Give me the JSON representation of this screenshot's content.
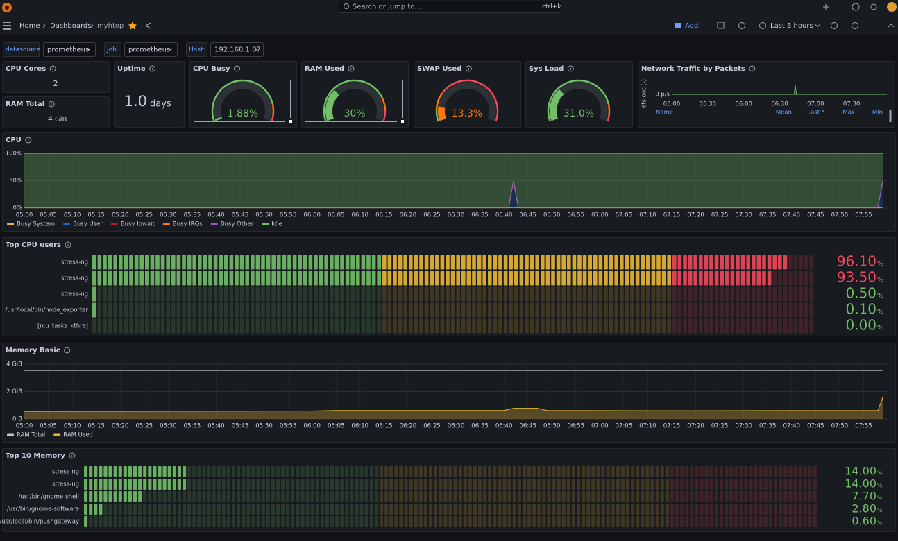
{
  "topbar": {
    "search": "Search or jump to...",
    "shortcut": "ctrl+k"
  },
  "breadcrumb": [
    "Home",
    "Dashboards",
    "myhtop"
  ],
  "toolbar": {
    "add": "Add",
    "time_range": "Last 3 hours"
  },
  "variables": [
    {
      "label": "datasource",
      "value": "prometheus"
    },
    {
      "label": "Job",
      "value": "prometheus"
    },
    {
      "label": "Host:",
      "value": "192.168.1.87"
    }
  ],
  "stats": {
    "cpu_cores": {
      "title": "CPU Cores",
      "value": 2
    },
    "ram_total": {
      "title": "RAM Total",
      "value": 4,
      "unit": "GiB"
    },
    "uptime": {
      "title": "Uptime",
      "value": "1.0",
      "unit": "days"
    }
  },
  "gauges": [
    {
      "title": "CPU Busy",
      "value": 1.88,
      "value_label": "1.88%",
      "range": [
        0,
        100
      ],
      "thresholds": [
        {
          "value": 0,
          "color": "#73bf69"
        },
        {
          "value": 85,
          "color": "#ff780a"
        },
        {
          "value": 95,
          "color": "#f2495c"
        }
      ]
    },
    {
      "title": "RAM Used",
      "value": 30,
      "value_label": "30%",
      "range": [
        0,
        100
      ],
      "thresholds": [
        {
          "value": 0,
          "color": "#73bf69"
        },
        {
          "value": 80,
          "color": "#ff780a"
        },
        {
          "value": 90,
          "color": "#f2495c"
        }
      ]
    },
    {
      "title": "SWAP Used",
      "value": 13.3,
      "value_label": "13.3%",
      "range": [
        0,
        100
      ],
      "thresholds": [
        {
          "value": 0,
          "color": "#73bf69"
        },
        {
          "value": 10,
          "color": "#ff780a"
        },
        {
          "value": 25,
          "color": "#f2495c"
        }
      ]
    },
    {
      "title": "Sys Load",
      "value": 31,
      "value_label": "31.0%",
      "range": [
        0,
        100
      ],
      "thresholds": [
        {
          "value": 0,
          "color": "#73bf69"
        },
        {
          "value": 85,
          "color": "#ff780a"
        },
        {
          "value": 95,
          "color": "#f2495c"
        }
      ]
    }
  ],
  "network": {
    "title": "Network Traffic by Packets",
    "ylabel": "ets out (-)",
    "xlim": [
      "05:00",
      "08:00"
    ],
    "ylim": [
      -1,
      1
    ],
    "yticks": [
      {
        "value": 0,
        "label": "0 p/s"
      }
    ],
    "xticks": [
      "05:00",
      "05:30",
      "06:00",
      "06:30",
      "07:00",
      "07:30"
    ],
    "x": [
      "05:00",
      "06:42",
      "06:43",
      "06:44",
      "07:59"
    ],
    "series": [
      {
        "color": "#eab839",
        "fill": false,
        "values": [
          0,
          0,
          0,
          0,
          0
        ]
      },
      {
        "color": "#73bf69",
        "fill": false,
        "values": [
          0,
          0,
          0.8,
          0,
          0
        ]
      }
    ],
    "legend_columns": [
      "Name",
      "Mean",
      "Last *",
      "Max",
      "Min"
    ]
  },
  "cpu": {
    "title": "CPU",
    "stacked": true,
    "xlim": [
      "05:00",
      "08:00"
    ],
    "ylim": [
      0,
      100
    ],
    "yticks": [
      {
        "value": 0,
        "label": "0%"
      },
      {
        "value": 50,
        "label": "50%"
      },
      {
        "value": 100,
        "label": "100%"
      }
    ],
    "xticks": [
      "05:00",
      "05:05",
      "05:10",
      "05:15",
      "05:20",
      "05:25",
      "05:30",
      "05:35",
      "05:40",
      "05:45",
      "05:50",
      "05:55",
      "06:00",
      "06:05",
      "06:10",
      "06:15",
      "06:20",
      "06:25",
      "06:30",
      "06:35",
      "06:40",
      "06:45",
      "06:50",
      "06:55",
      "07:00",
      "07:05",
      "07:10",
      "07:15",
      "07:20",
      "07:25",
      "07:30",
      "07:35",
      "07:40",
      "07:45",
      "07:50",
      "07:55"
    ],
    "x": [
      "05:00",
      "05:15",
      "05:30",
      "05:45",
      "06:00",
      "06:15",
      "06:30",
      "06:41",
      "06:42",
      "06:43",
      "06:45",
      "07:00",
      "07:15",
      "07:30",
      "07:45",
      "07:58",
      "07:59"
    ],
    "series": [
      {
        "name": "Busy System",
        "color": "#eab839",
        "fill": true,
        "values": [
          0.5,
          0.5,
          0.5,
          0.5,
          0.5,
          0.5,
          0.5,
          0.5,
          1.5,
          0.5,
          0.5,
          0.5,
          0.5,
          0.5,
          0.5,
          0.5,
          1.5
        ]
      },
      {
        "name": "Busy User",
        "color": "#1f60c4",
        "fill": true,
        "values": [
          1,
          1,
          1,
          1,
          1,
          1,
          1,
          1,
          47,
          1,
          1,
          1,
          1,
          1,
          1,
          1,
          47
        ]
      },
      {
        "name": "Busy Iowait",
        "color": "#c4162a",
        "fill": true,
        "values": [
          0.1,
          0.1,
          0.1,
          0.1,
          0.1,
          0.1,
          0.1,
          0.1,
          0.1,
          0.1,
          0.1,
          0.1,
          0.1,
          0.1,
          0.1,
          0.1,
          0.1
        ]
      },
      {
        "name": "Busy IRQs",
        "color": "#ff780a",
        "fill": true,
        "values": [
          0.1,
          0.1,
          0.1,
          0.1,
          0.1,
          0.1,
          0.1,
          0.1,
          0.1,
          0.1,
          0.1,
          0.1,
          0.1,
          0.1,
          0.1,
          0.1,
          0.1
        ]
      },
      {
        "name": "Busy Other",
        "color": "#a352cc",
        "fill": true,
        "values": [
          0,
          0,
          0,
          0,
          0,
          0,
          0,
          0,
          0,
          0,
          0,
          0,
          0,
          0,
          0,
          0,
          0
        ]
      },
      {
        "name": "Idle",
        "color": "#73bf69",
        "fill": true,
        "values": [
          98.3,
          98.3,
          98.3,
          98.3,
          98.3,
          98.3,
          98.3,
          98.3,
          51.3,
          98.3,
          98.3,
          98.3,
          98.3,
          98.3,
          98.3,
          98.3,
          51.3
        ]
      }
    ]
  },
  "top_cpu": {
    "title": "Top CPU users",
    "range": [
      0,
      100
    ],
    "unit": "%",
    "thresholds": [
      {
        "value": 0,
        "color": "#73bf69"
      },
      {
        "value": 40,
        "color": "#eab839"
      },
      {
        "value": 80,
        "color": "#f2495c"
      }
    ],
    "rows": [
      {
        "name": "stress-ng",
        "value": 96.1,
        "value_label": "96.10"
      },
      {
        "name": "stress-ng",
        "value": 93.5,
        "value_label": "93.50"
      },
      {
        "name": "stress-ng",
        "value": 0.5,
        "value_label": "0.50"
      },
      {
        "name": "/usr/local/bin/node_exporter",
        "value": 0.1,
        "value_label": "0.10"
      },
      {
        "name": "[rcu_tasks_kthre]",
        "value": 0,
        "value_label": "0.00"
      }
    ]
  },
  "memory": {
    "title": "Memory Basic",
    "stacked": false,
    "xlim": [
      "05:00",
      "08:00"
    ],
    "ylim": [
      0,
      4
    ],
    "yticks": [
      {
        "value": 0,
        "label": "0 B"
      },
      {
        "value": 2,
        "label": "2 GiB"
      },
      {
        "value": 4,
        "label": "4 GiB"
      }
    ],
    "xticks": [
      "05:00",
      "05:05",
      "05:10",
      "05:15",
      "05:20",
      "05:25",
      "05:30",
      "05:35",
      "05:40",
      "05:45",
      "05:50",
      "05:55",
      "06:00",
      "06:05",
      "06:10",
      "06:15",
      "06:20",
      "06:25",
      "06:30",
      "06:35",
      "06:40",
      "06:45",
      "06:50",
      "06:55",
      "07:00",
      "07:05",
      "07:10",
      "07:15",
      "07:20",
      "07:25",
      "07:30",
      "07:35",
      "07:40",
      "07:45",
      "07:50",
      "07:55"
    ],
    "x": [
      "05:00",
      "06:00",
      "06:05",
      "06:40",
      "06:42",
      "06:47",
      "06:49",
      "07:15",
      "07:58",
      "07:59"
    ],
    "series": [
      {
        "name": "RAM Total",
        "color": "#c8c8c8",
        "fill": false,
        "values": [
          3.54,
          3.54,
          3.54,
          3.54,
          3.54,
          3.54,
          3.54,
          3.54,
          3.54,
          3.54
        ]
      },
      {
        "name": "RAM Used",
        "color": "#eab839",
        "fill": true,
        "values": [
          0.55,
          0.58,
          0.62,
          0.62,
          0.78,
          0.78,
          0.62,
          0.6,
          0.62,
          1.6
        ]
      }
    ]
  },
  "top_memory": {
    "title": "Top 10 Memory",
    "range": [
      0,
      100
    ],
    "unit": "%",
    "thresholds": [
      {
        "value": 0,
        "color": "#73bf69"
      },
      {
        "value": 40,
        "color": "#eab839"
      },
      {
        "value": 80,
        "color": "#f2495c"
      }
    ],
    "rows": [
      {
        "name": "stress-ng",
        "value": 14,
        "value_label": "14.00"
      },
      {
        "name": "stress-ng",
        "value": 14,
        "value_label": "14.00"
      },
      {
        "name": "/usr/bin/gnome-shell",
        "value": 7.7,
        "value_label": "7.70"
      },
      {
        "name": "/usr/bin/gnome-software",
        "value": 2.8,
        "value_label": "2.80"
      },
      {
        "name": "/usr/local/bin/pushgateway",
        "value": 0.6,
        "value_label": "0.60"
      }
    ]
  }
}
